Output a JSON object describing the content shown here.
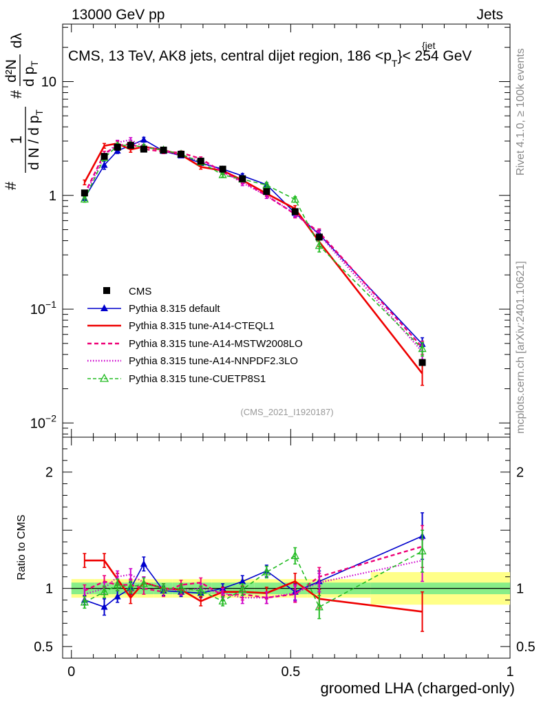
{
  "header": {
    "left": "13000 GeV pp",
    "right": "Jets"
  },
  "side_labels": {
    "rivet": "Rivet 4.1.0, ≥ 100k events",
    "mcplots": "mcplots.cern.ch [arXiv:2401.10621]"
  },
  "chart_data": {
    "type": "line",
    "title": "CMS, 13 TeV, AK8 jets, central dijet region, 186 <p",
    "title_sup": "{jet",
    "title_sub": "T",
    "title_tail": "}< 254 GeV",
    "analysis_id": "(CMS_2021_I1920187)",
    "ylabel": {
      "hash1": "#",
      "one": "1",
      "dN": "d N / d p",
      "dN_sub": "T",
      "hash2": "#",
      "d2N": "d²N",
      "dpt": "d p",
      "dpt_sub": "T",
      "dlambda": "dλ"
    },
    "xlabel": "groomed LHA (charged-only)",
    "ratio_ylabel": "Ratio to CMS",
    "xlim": [
      -0.02,
      1.0
    ],
    "ylim_log": [
      0.0075,
      32
    ],
    "ratio_ylim": [
      0.4,
      2.3
    ],
    "x_ticks": [
      {
        "v": 0,
        "label": "0"
      },
      {
        "v": 0.5,
        "label": "0.5"
      },
      {
        "v": 1,
        "label": "1"
      }
    ],
    "y_ticks": [
      {
        "v": 0.01,
        "base": "10",
        "exp": "−2"
      },
      {
        "v": 0.1,
        "base": "10",
        "exp": "−1"
      },
      {
        "v": 1,
        "base": "1",
        "exp": ""
      },
      {
        "v": 10,
        "base": "10",
        "exp": ""
      }
    ],
    "ratio_ticks": [
      {
        "v": 0.5,
        "label": "0.5"
      },
      {
        "v": 1,
        "label": "1"
      },
      {
        "v": 2,
        "label": "2"
      }
    ],
    "x": [
      0.03,
      0.075,
      0.105,
      0.135,
      0.165,
      0.21,
      0.25,
      0.295,
      0.345,
      0.39,
      0.445,
      0.51,
      0.565,
      0.8
    ],
    "data": {
      "name": "CMS",
      "values": [
        1.05,
        2.2,
        2.65,
        2.75,
        2.55,
        2.5,
        2.3,
        2.0,
        1.7,
        1.4,
        1.08,
        0.72,
        0.43,
        0.034
      ],
      "rel_err_green": [
        0.05,
        0.05,
        0.05,
        0.05,
        0.05,
        0.05,
        0.05,
        0.05,
        0.05,
        0.05,
        0.05,
        0.05,
        0.05,
        0.05
      ],
      "rel_err_yellow": [
        0.08,
        0.08,
        0.08,
        0.08,
        0.08,
        0.08,
        0.08,
        0.08,
        0.08,
        0.08,
        0.08,
        0.08,
        0.08,
        0.14
      ]
    },
    "series": [
      {
        "name": "Pythia 8.315 default",
        "color": "#0000cc",
        "style": "solid",
        "marker": "triangle-filled",
        "ratio": [
          0.9,
          0.84,
          0.93,
          1.0,
          1.21,
          0.98,
          0.97,
          0.96,
          1.0,
          1.06,
          1.15,
          0.97,
          1.06,
          1.45
        ],
        "ratio_err": [
          0.04,
          0.07,
          0.05,
          0.05,
          0.06,
          0.04,
          0.04,
          0.04,
          0.04,
          0.05,
          0.05,
          0.07,
          0.09,
          0.2
        ]
      },
      {
        "name": "Pythia 8.315 tune-A14-CTEQL1",
        "color": "#ee0000",
        "style": "solid-thick",
        "marker": "none",
        "ratio": [
          1.24,
          1.24,
          1.08,
          0.92,
          1.05,
          1.0,
          0.99,
          0.89,
          0.97,
          0.97,
          0.96,
          1.06,
          0.91,
          0.8
        ],
        "ratio_err": [
          0.06,
          0.06,
          0.05,
          0.05,
          0.05,
          0.04,
          0.04,
          0.04,
          0.04,
          0.05,
          0.05,
          0.07,
          0.08,
          0.17
        ]
      },
      {
        "name": "Pythia 8.315 tune-A14-MSTW2008LO",
        "color": "#ee0077",
        "style": "dashed",
        "marker": "none",
        "ratio": [
          0.98,
          1.06,
          1.03,
          1.03,
          1.0,
          0.97,
          1.03,
          1.05,
          0.94,
          0.95,
          0.92,
          0.95,
          1.1,
          1.36
        ],
        "ratio_err": [
          0.05,
          0.05,
          0.05,
          0.05,
          0.05,
          0.04,
          0.04,
          0.04,
          0.04,
          0.05,
          0.05,
          0.07,
          0.08,
          0.18
        ]
      },
      {
        "name": "Pythia 8.315 tune-A14-NNPDF2.3LO",
        "color": "#cc00cc",
        "style": "dotted",
        "marker": "none",
        "ratio": [
          0.95,
          1.0,
          1.1,
          1.12,
          1.05,
          1.0,
          0.98,
          1.0,
          0.96,
          0.92,
          0.92,
          0.96,
          1.05,
          1.24
        ],
        "ratio_err": [
          0.05,
          0.05,
          0.05,
          0.05,
          0.05,
          0.04,
          0.04,
          0.04,
          0.04,
          0.05,
          0.05,
          0.07,
          0.08,
          0.18
        ]
      },
      {
        "name": "Pythia 8.315 tune-CUETP8S1",
        "color": "#22bb22",
        "style": "dashed",
        "marker": "triangle-open",
        "ratio": [
          0.88,
          0.97,
          1.03,
          1.01,
          1.04,
          1.0,
          1.0,
          0.98,
          0.89,
          0.99,
          1.14,
          1.28,
          0.84,
          1.32
        ],
        "ratio_err": [
          0.05,
          0.05,
          0.05,
          0.05,
          0.05,
          0.04,
          0.04,
          0.04,
          0.04,
          0.05,
          0.05,
          0.07,
          0.1,
          0.18
        ]
      }
    ]
  }
}
